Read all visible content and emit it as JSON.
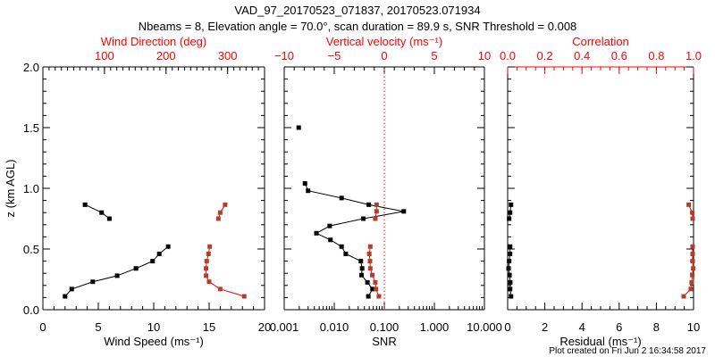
{
  "title_line1": "VAD_97_20170523_071837, 20170523.071934",
  "title_line2": "Nbeams = 8, Elevation angle = 70.0°, scan duration = 89.9 s, SNR Threshold = 0.008",
  "footer": "Plot created on Fri Jun  2 16:34:58 2017",
  "colors": {
    "axis": "#000000",
    "top_axis": "#ff0000",
    "marker_red": "#b0402c",
    "line_red": "#ff0000",
    "series_black": "#000000"
  },
  "chart_data": [
    {
      "type": "line",
      "ylabel": "z (km AGL)",
      "ylim": [
        0,
        2.0
      ],
      "yticks": [
        "0.0",
        "0.5",
        "1.0",
        "1.5",
        "2.0"
      ],
      "xlabel": "Wind Speed (ms⁻¹)",
      "xlim": [
        0,
        20
      ],
      "xticks": [
        "0",
        "5",
        "10",
        "15",
        "20"
      ],
      "x2label": "Wind Direction (deg)",
      "x2lim": [
        0,
        360
      ],
      "x2ticks": [
        "100",
        "200",
        "300"
      ],
      "series": [
        {
          "name": "Wind Speed",
          "axis": "bottom",
          "segments": [
            {
              "x": [
                2.0,
                2.6,
                4.5,
                6.7,
                8.4,
                9.9,
                10.5,
                11.3
              ],
              "z": [
                0.11,
                0.17,
                0.23,
                0.28,
                0.34,
                0.4,
                0.46,
                0.52
              ]
            },
            {
              "x": [
                3.8,
                5.3,
                6.0
              ],
              "z": [
                0.865,
                0.8,
                0.75
              ]
            }
          ]
        },
        {
          "name": "Wind Direction",
          "axis": "top",
          "segments": [
            {
              "x": [
                327,
                288,
                270,
                265,
                265,
                266,
                269,
                271
              ],
              "z": [
                0.11,
                0.17,
                0.23,
                0.28,
                0.34,
                0.4,
                0.46,
                0.52
              ]
            },
            {
              "x": [
                296,
                288,
                285
              ],
              "z": [
                0.865,
                0.8,
                0.75
              ]
            }
          ]
        }
      ]
    },
    {
      "type": "line",
      "ylim": [
        0,
        2.0
      ],
      "xlabel": "SNR",
      "xscale": "log",
      "xlim": [
        0.001,
        10
      ],
      "xticks": [
        "0.001",
        "0.010",
        "0.100",
        "1.000",
        "10.000"
      ],
      "x2label": "Vertical velocity (ms⁻¹)",
      "x2lim": [
        -10,
        10
      ],
      "x2ticks": [
        "−10",
        "−5",
        "0",
        "5",
        "10"
      ],
      "reference_line": {
        "axis": "top",
        "value": 0
      },
      "series": [
        {
          "name": "SNR",
          "axis": "bottom",
          "segments": [
            {
              "x": [
                0.00195
              ],
              "z": [
                1.5
              ]
            },
            {
              "x": [
                0.0026,
                0.003,
                0.014,
                0.049,
                0.245,
                0.038,
                0.0081,
                0.0044,
                0.0084,
                0.014,
                0.017,
                0.034,
                0.036,
                0.035,
                0.046,
                0.058,
                0.048
              ],
              "z": [
                1.04,
                0.98,
                0.92,
                0.865,
                0.81,
                0.75,
                0.69,
                0.63,
                0.575,
                0.52,
                0.46,
                0.4,
                0.34,
                0.285,
                0.225,
                0.17,
                0.11
              ]
            }
          ]
        },
        {
          "name": "Vertical velocity",
          "axis": "top",
          "segments": [
            {
              "x": [
                -0.77,
                -0.77,
                -0.9
              ],
              "z": [
                0.865,
                0.81,
                0.75
              ]
            },
            {
              "x": [
                -1.4,
                -1.5,
                -1.43,
                -1.4,
                -1.2,
                -0.9,
                -0.83,
                -0.54
              ],
              "z": [
                0.52,
                0.46,
                0.4,
                0.34,
                0.285,
                0.225,
                0.17,
                0.11
              ]
            }
          ]
        }
      ]
    },
    {
      "type": "line",
      "ylim": [
        0,
        2.0
      ],
      "xlabel": "Residual (ms⁻¹)",
      "xlim": [
        0,
        10
      ],
      "xticks": [
        "0",
        "2",
        "4",
        "6",
        "8",
        "10"
      ],
      "x2label": "Correlation",
      "x2lim": [
        0,
        1.0
      ],
      "x2ticks": [
        "0.0",
        "0.2",
        "0.4",
        "0.6",
        "0.8",
        "1.0"
      ],
      "series": [
        {
          "name": "Residual",
          "axis": "bottom",
          "segments": [
            {
              "x": [
                0.18,
                0.13,
                0.08
              ],
              "z": [
                0.865,
                0.8,
                0.75
              ]
            },
            {
              "x": [
                0.13,
                0.13,
                0.08,
                0.05,
                0.1,
                0.14,
                0.13,
                0.18
              ],
              "z": [
                0.52,
                0.46,
                0.4,
                0.34,
                0.285,
                0.225,
                0.17,
                0.11
              ]
            }
          ]
        },
        {
          "name": "Correlation",
          "axis": "top",
          "segments": [
            {
              "x": [
                0.974,
                0.993,
                0.995
              ],
              "z": [
                0.865,
                0.8,
                0.75
              ]
            },
            {
              "x": [
                0.995,
                0.995,
                0.995,
                0.998,
                0.993,
                0.99,
                0.985,
                0.947
              ],
              "z": [
                0.52,
                0.46,
                0.4,
                0.34,
                0.285,
                0.225,
                0.17,
                0.11
              ]
            }
          ]
        }
      ]
    }
  ]
}
